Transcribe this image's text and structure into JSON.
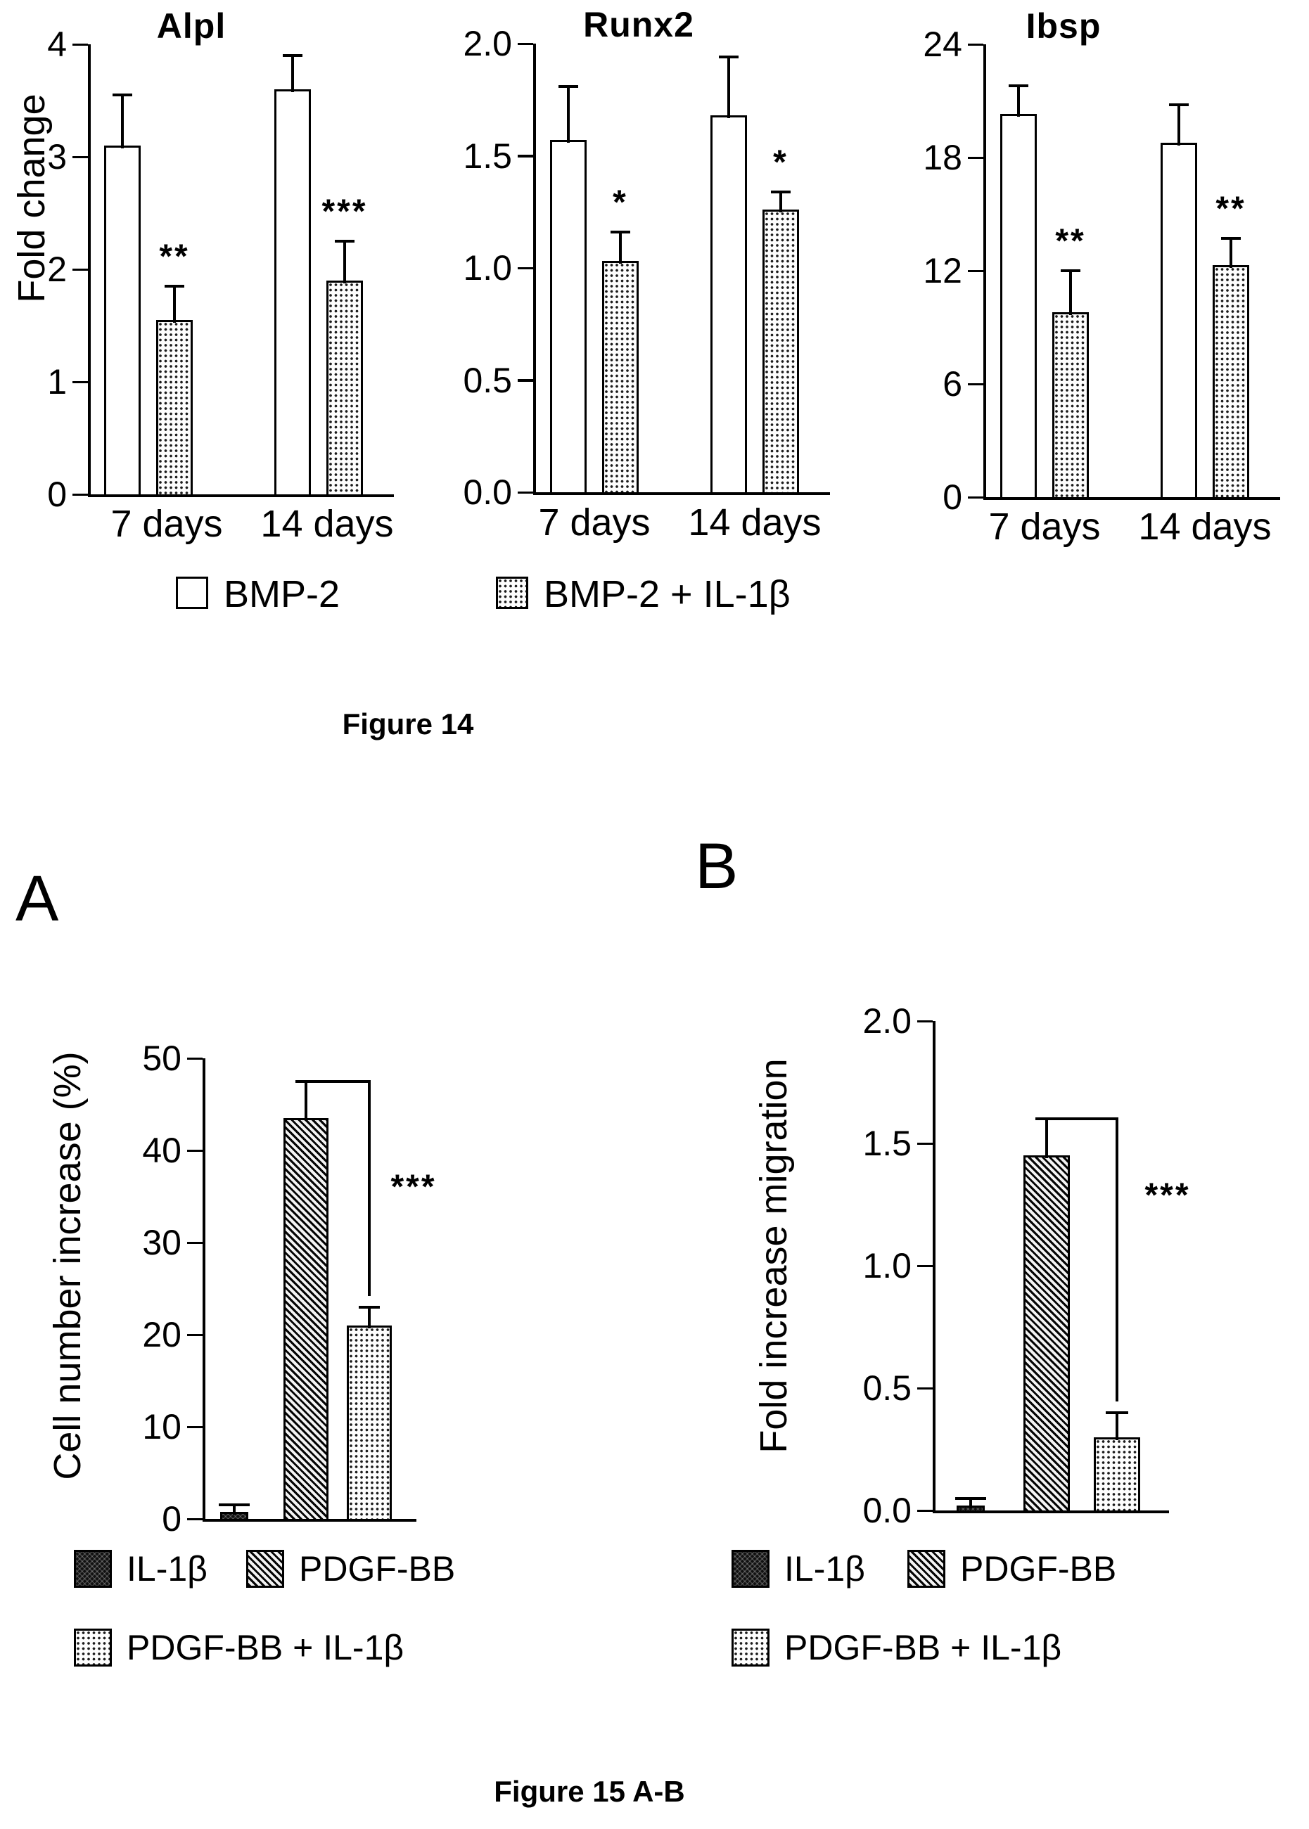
{
  "figure14": {
    "caption": "Figure 14",
    "ylabel": "Fold change",
    "categories": [
      "7 days",
      "14 days"
    ],
    "legend": [
      {
        "label": "BMP-2",
        "pattern": "open"
      },
      {
        "label": "BMP-2 + IL-1β",
        "pattern": "dots"
      }
    ]
  },
  "figure15": {
    "caption": "Figure 15 A-B",
    "panels": [
      {
        "letter": "A",
        "ylabel": "Cell number increase (%)"
      },
      {
        "letter": "B",
        "ylabel": "Fold increase migration"
      }
    ],
    "legend": [
      {
        "label": "IL-1β",
        "pattern": "dark"
      },
      {
        "label": "PDGF-BB",
        "pattern": "hatch"
      },
      {
        "label": "PDGF-BB + IL-1β",
        "pattern": "dots"
      }
    ]
  },
  "chart_data": [
    {
      "id": "alpl",
      "type": "bar",
      "title": "Alpl",
      "ylabel": "Fold change",
      "categories": [
        "7 days",
        "14 days"
      ],
      "series": [
        {
          "name": "BMP-2",
          "pattern": "open",
          "values": [
            3.1,
            3.6
          ],
          "errors_plus": [
            0.45,
            0.3
          ]
        },
        {
          "name": "BMP-2 + IL-1β",
          "pattern": "dots",
          "values": [
            1.55,
            1.9
          ],
          "errors_plus": [
            0.3,
            0.35
          ]
        }
      ],
      "significance": [
        {
          "category": "7 days",
          "series": "BMP-2 + IL-1β",
          "label": "**"
        },
        {
          "category": "14 days",
          "series": "BMP-2 + IL-1β",
          "label": "***"
        }
      ],
      "ylim": [
        0,
        4
      ],
      "ytick_labels": [
        "0",
        "1",
        "2",
        "3",
        "4"
      ],
      "grid": false,
      "legend_position": "bottom"
    },
    {
      "id": "runx2",
      "type": "bar",
      "title": "Runx2",
      "ylabel": "",
      "categories": [
        "7 days",
        "14 days"
      ],
      "series": [
        {
          "name": "BMP-2",
          "pattern": "open",
          "values": [
            1.57,
            1.68
          ],
          "errors_plus": [
            0.24,
            0.26
          ]
        },
        {
          "name": "BMP-2 + IL-1β",
          "pattern": "dots",
          "values": [
            1.03,
            1.26
          ],
          "errors_plus": [
            0.13,
            0.08
          ]
        }
      ],
      "significance": [
        {
          "category": "7 days",
          "series": "BMP-2 + IL-1β",
          "label": "*"
        },
        {
          "category": "14 days",
          "series": "BMP-2 + IL-1β",
          "label": "*"
        }
      ],
      "ylim": [
        0,
        2
      ],
      "ytick_labels": [
        "0.0",
        "0.5",
        "1.0",
        "1.5",
        "2.0"
      ],
      "grid": false,
      "legend_position": "bottom"
    },
    {
      "id": "ibsp",
      "type": "bar",
      "title": "Ibsp",
      "ylabel": "",
      "categories": [
        "7 days",
        "14 days"
      ],
      "series": [
        {
          "name": "BMP-2",
          "pattern": "open",
          "values": [
            20.3,
            18.8
          ],
          "errors_plus": [
            1.5,
            2.0
          ]
        },
        {
          "name": "BMP-2 + IL-1β",
          "pattern": "dots",
          "values": [
            9.8,
            12.3
          ],
          "errors_plus": [
            2.2,
            1.4
          ]
        }
      ],
      "significance": [
        {
          "category": "7 days",
          "series": "BMP-2 + IL-1β",
          "label": "**"
        },
        {
          "category": "14 days",
          "series": "BMP-2 + IL-1β",
          "label": "**"
        }
      ],
      "ylim": [
        0,
        24
      ],
      "ytick_labels": [
        "0",
        "6",
        "12",
        "18",
        "24"
      ],
      "grid": false,
      "legend_position": "bottom"
    },
    {
      "id": "cell-number-increase",
      "type": "bar",
      "panel": "A",
      "title": "",
      "ylabel": "Cell number increase (%)",
      "categories": [
        "IL-1β",
        "PDGF-BB",
        "PDGF-BB + IL-1β"
      ],
      "series": [
        {
          "name": "",
          "patterns": [
            "dark",
            "hatch",
            "dots"
          ],
          "values": [
            0.8,
            43.5,
            21.0
          ],
          "errors_plus": [
            0.7,
            4.0,
            2.0
          ]
        }
      ],
      "significance": [
        {
          "between": [
            "PDGF-BB",
            "PDGF-BB + IL-1β"
          ],
          "label": "***"
        }
      ],
      "ylim": [
        0,
        50
      ],
      "ytick_labels": [
        "0",
        "10",
        "20",
        "30",
        "40",
        "50"
      ],
      "grid": false,
      "legend_position": "bottom"
    },
    {
      "id": "fold-increase-migration",
      "type": "bar",
      "panel": "B",
      "title": "",
      "ylabel": "Fold increase migration",
      "categories": [
        "IL-1β",
        "PDGF-BB",
        "PDGF-BB + IL-1β"
      ],
      "series": [
        {
          "name": "",
          "patterns": [
            "dark",
            "hatch",
            "dots"
          ],
          "values": [
            0.02,
            1.45,
            0.3
          ],
          "errors_plus": [
            0.03,
            0.15,
            0.1
          ]
        }
      ],
      "significance": [
        {
          "between": [
            "PDGF-BB",
            "PDGF-BB + IL-1β"
          ],
          "label": "***"
        }
      ],
      "ylim": [
        0,
        2
      ],
      "ytick_labels": [
        "0.0",
        "0.5",
        "1.0",
        "1.5",
        "2.0"
      ],
      "grid": false,
      "legend_position": "bottom"
    }
  ]
}
